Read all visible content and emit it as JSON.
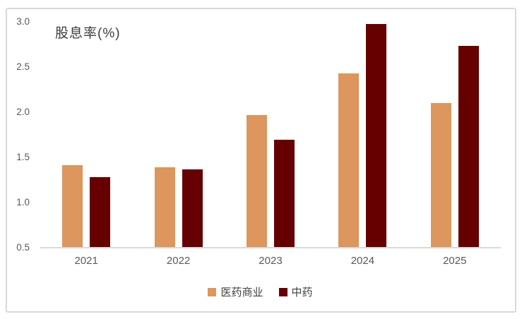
{
  "chart_data": {
    "type": "bar",
    "title": "股息率(%)",
    "xlabel": "",
    "ylabel": "",
    "categories": [
      "2021",
      "2022",
      "2023",
      "2024",
      "2025"
    ],
    "series": [
      {
        "name": "医药商业",
        "color": "#dc965e",
        "values": [
          1.41,
          1.38,
          1.96,
          2.42,
          2.09
        ]
      },
      {
        "name": "中药",
        "color": "#660000",
        "values": [
          1.27,
          1.36,
          1.69,
          2.97,
          2.73
        ]
      }
    ],
    "ylim": [
      0.5,
      3.0
    ],
    "ytick_step": 0.5,
    "ytick_labels": [
      "0.5",
      "1.0",
      "1.5",
      "2.0",
      "2.5",
      "3.0"
    ],
    "grid": false,
    "legend_position": "bottom-center"
  },
  "colors": {
    "axis_line": "#d9d9d9",
    "panel_border": "#d9d9d9",
    "tick_text": "#595959",
    "title_text": "#3c3c3c",
    "legend_text": "#404040",
    "background": "#ffffff"
  }
}
